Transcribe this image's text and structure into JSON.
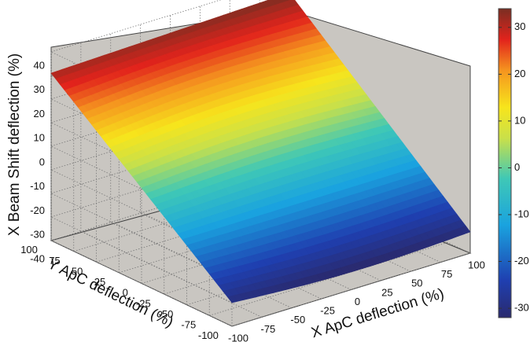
{
  "chart_data": {
    "type": "surface3d",
    "xlabel": "X ApC deflection (%)",
    "ylabel": "Y ApC deflection (%)",
    "zlabel": "X Beam Shift deflection (%)",
    "xlim": [
      -100,
      100
    ],
    "ylim": [
      -100,
      100
    ],
    "zlim": [
      -40,
      40
    ],
    "x_ticks": [
      "-100",
      "-75",
      "-50",
      "-25",
      "0",
      "25",
      "50",
      "75",
      "100"
    ],
    "y_ticks": [
      "100",
      "75",
      "50",
      "25",
      "0",
      "-25",
      "-50",
      "-75",
      "-100"
    ],
    "z_ticks": [
      "40",
      "30",
      "20",
      "10",
      "0",
      "-10",
      "-20",
      "-30",
      "-40"
    ],
    "grid": true,
    "colormap": "jet",
    "colorbar": {
      "range": [
        -32,
        34
      ],
      "ticks": [
        "30",
        "20",
        "10",
        "0",
        "-10",
        "-20",
        "-30"
      ],
      "position": "right"
    },
    "surface_corners": [
      {
        "x": -100,
        "y": 100,
        "z": 31
      },
      {
        "x": 100,
        "y": 100,
        "z": 34
      },
      {
        "x": -100,
        "y": -100,
        "z": -30
      },
      {
        "x": 100,
        "y": -100,
        "z": -31
      }
    ],
    "pane_color": "#c9c6c1"
  }
}
